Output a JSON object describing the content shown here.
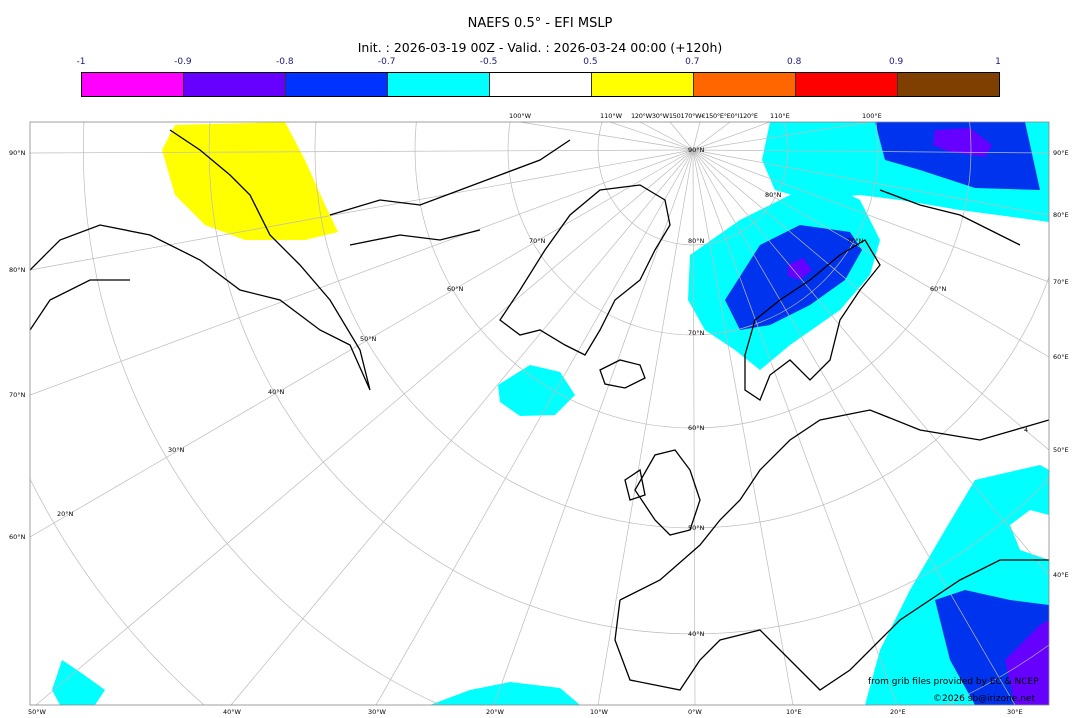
{
  "title": "NAEFS 0.5° - EFI MSLP",
  "subtitle": "Init. : 2026-03-19 00Z - Valid. : 2026-03-24 00:00 (+120h)",
  "colorbar": {
    "ticks": [
      "-1",
      "-0.9",
      "-0.8",
      "-0.7",
      "-0.5",
      "0.5",
      "0.7",
      "0.8",
      "0.9",
      "1"
    ],
    "colors": [
      "#ff00ff",
      "#6600ff",
      "#0033ff",
      "#00ffff",
      "#ffffff",
      "#ffff00",
      "#ff6600",
      "#ff0000",
      "#7f3f00"
    ]
  },
  "map": {
    "bottom_labels": [
      "50°W",
      "40°W",
      "30°W",
      "20°W",
      "10°W",
      "0°W",
      "10°E",
      "20°E",
      "30°E"
    ],
    "top_labels": [
      "100°W",
      "110°W",
      "120°W30°W150170°W€150°E°E0°I120°E",
      "110°E",
      "100°E"
    ],
    "left_labels": [
      "90°N",
      "80°N",
      "70°N",
      "60°N"
    ],
    "right_labels": [
      "90°E",
      "80°E",
      "70°E",
      "60°E",
      "50°E",
      "40°E"
    ],
    "interior_labels": [
      "90°N",
      "80°N",
      "80°N",
      "70°N",
      "70°N",
      "70°N",
      "60°N",
      "60°N",
      "60°N",
      "50°N",
      "50°N",
      "40°N",
      "40°N",
      "30°N",
      "20°N",
      "4"
    ],
    "credit": "from grib files provided by EC & NCEP",
    "copyright": "©2026 sb@irizone.net"
  }
}
